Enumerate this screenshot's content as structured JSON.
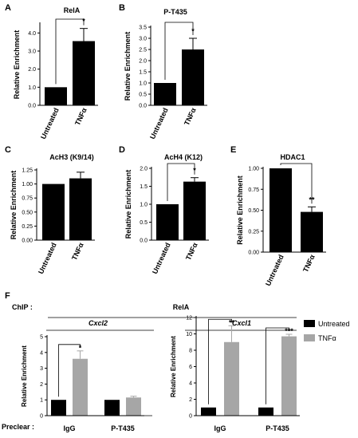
{
  "figure": {
    "section_f_row_labels": {
      "chip": "ChIP :",
      "preclear": "Preclear :"
    },
    "section_f_header": "RelA",
    "legend": [
      {
        "label": "Untreated",
        "color": "#000000"
      },
      {
        "label": "TNFα",
        "color": "#a6a6a6"
      }
    ]
  },
  "chart_data": [
    {
      "panel": "A",
      "type": "bar",
      "title": "RelA",
      "ylabel": "Relative Enrichment",
      "ylim": [
        0,
        4.5
      ],
      "yticks": [
        "0.0",
        "1.0",
        "2.0",
        "3.0",
        "4.0"
      ],
      "ytick_values": [
        0,
        1,
        2,
        3,
        4
      ],
      "categories": [
        "Untreated",
        "TNFα"
      ],
      "values": [
        1.0,
        3.55
      ],
      "errors": [
        0,
        0.7
      ],
      "bar_colors": [
        "#000000",
        "#000000"
      ],
      "significance": [
        {
          "from": 0,
          "to": 1,
          "label": "*"
        }
      ]
    },
    {
      "panel": "B",
      "type": "bar",
      "title": "P-T435",
      "ylabel": "Relative Enrichment",
      "ylim": [
        0,
        3.5
      ],
      "yticks": [
        "0.0",
        "0.5",
        "1.0",
        "1.5",
        "2.0",
        "2.5",
        "3.0",
        "3.5"
      ],
      "ytick_values": [
        0,
        0.5,
        1,
        1.5,
        2,
        2.5,
        3,
        3.5
      ],
      "categories": [
        "Untreated",
        "TNFα"
      ],
      "values": [
        1.0,
        2.5
      ],
      "errors": [
        0,
        0.5
      ],
      "bar_colors": [
        "#000000",
        "#000000"
      ],
      "significance": [
        {
          "from": 0,
          "to": 1,
          "label": "*"
        }
      ]
    },
    {
      "panel": "C",
      "type": "bar",
      "title": "AcH3 (K9/14)",
      "ylabel": "Relative Enrichment",
      "ylim": [
        0,
        1.25
      ],
      "yticks": [
        "0.00",
        "0.25",
        "0.50",
        "0.75",
        "1.00",
        "1.25"
      ],
      "ytick_values": [
        0,
        0.25,
        0.5,
        0.75,
        1,
        1.25
      ],
      "categories": [
        "Untreated",
        "TNFα"
      ],
      "values": [
        1.0,
        1.1
      ],
      "errors": [
        0,
        0.11
      ],
      "bar_colors": [
        "#000000",
        "#000000"
      ],
      "significance": []
    },
    {
      "panel": "D",
      "type": "bar",
      "title": "AcH4 (K12)",
      "ylabel": "Relative Enrichment",
      "ylim": [
        0,
        2.0
      ],
      "yticks": [
        "0.0",
        "0.5",
        "1.0",
        "1.5",
        "2.0"
      ],
      "ytick_values": [
        0,
        0.5,
        1,
        1.5,
        2
      ],
      "categories": [
        "Untreated",
        "TNFα"
      ],
      "values": [
        1.0,
        1.63
      ],
      "errors": [
        0,
        0.11
      ],
      "bar_colors": [
        "#000000",
        "#000000"
      ],
      "significance": [
        {
          "from": 0,
          "to": 1,
          "label": "*"
        }
      ]
    },
    {
      "panel": "E",
      "type": "bar",
      "title": "HDAC1",
      "ylabel": "Relative Enrichment",
      "ylim": [
        0,
        1.0
      ],
      "yticks": [
        "0.00",
        "0.25",
        "0.50",
        "0.75",
        "1.00"
      ],
      "ytick_values": [
        0,
        0.25,
        0.5,
        0.75,
        1
      ],
      "categories": [
        "Untreated",
        "TNFα"
      ],
      "values": [
        1.0,
        0.48
      ],
      "errors": [
        0,
        0.06
      ],
      "bar_colors": [
        "#000000",
        "#000000"
      ],
      "significance": [
        {
          "from": 0,
          "to": 1,
          "label": "**"
        }
      ]
    },
    {
      "panel": "F",
      "type": "bar",
      "title": "Cxcl2",
      "ylabel": "Relative Enrichment",
      "ylim": [
        0,
        5
      ],
      "yticks": [
        "0",
        "1",
        "2",
        "3",
        "4",
        "5"
      ],
      "ytick_values": [
        0,
        1,
        2,
        3,
        4,
        5
      ],
      "categories": [
        "IgG",
        "P-T435"
      ],
      "series": [
        {
          "name": "Untreated",
          "values": [
            1.0,
            1.0
          ],
          "errors": [
            0,
            0
          ],
          "color": "#000000"
        },
        {
          "name": "TNFα",
          "values": [
            3.6,
            1.15
          ],
          "errors": [
            0.5,
            0.08
          ],
          "color": "#a6a6a6"
        }
      ],
      "significance": [
        {
          "group": 0,
          "label": "*"
        }
      ]
    },
    {
      "panel": "F",
      "type": "bar",
      "title": "Cxcl1",
      "ylabel": "Relative Enrichment",
      "ylim": [
        0,
        12
      ],
      "yticks": [
        "0",
        "2",
        "4",
        "6",
        "8",
        "10",
        "12"
      ],
      "ytick_values": [
        0,
        2,
        4,
        6,
        8,
        10,
        12
      ],
      "categories": [
        "IgG",
        "P-T435"
      ],
      "series": [
        {
          "name": "Untreated",
          "values": [
            1.0,
            1.0
          ],
          "errors": [
            0,
            0
          ],
          "color": "#000000"
        },
        {
          "name": "TNFα",
          "values": [
            9.0,
            9.7
          ],
          "errors": [
            2.0,
            0.25
          ],
          "color": "#a6a6a6"
        }
      ],
      "significance": [
        {
          "group": 0,
          "label": "**"
        },
        {
          "group": 1,
          "label": "***"
        }
      ]
    }
  ]
}
